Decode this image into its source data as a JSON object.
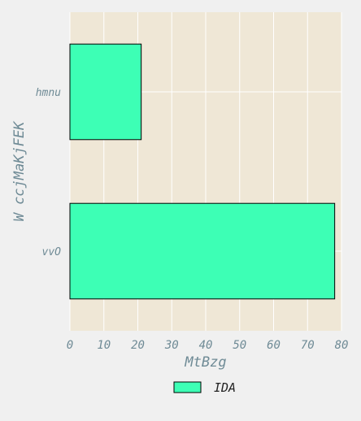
{
  "chart_data": {
    "type": "bar",
    "orientation": "horizontal",
    "categories": [
      "hmnu",
      "vvO"
    ],
    "series": [
      {
        "name": "IDA",
        "values": [
          21,
          78
        ]
      }
    ],
    "xlabel": "MtBzg",
    "ylabel": "W ccjMaKjFEK",
    "xlim": [
      0,
      80
    ],
    "xticks": [
      "0",
      "10",
      "20",
      "30",
      "40",
      "50",
      "60",
      "70",
      "80"
    ],
    "grid": true,
    "legend_position": "bottom-center",
    "colors": {
      "background": "#f0f0f0",
      "plot_background": "#efe7d6",
      "bar_fill": "#3dffb5",
      "bar_edge": "#000000",
      "grid": "#ffffff",
      "text": "#6e8a95"
    }
  }
}
